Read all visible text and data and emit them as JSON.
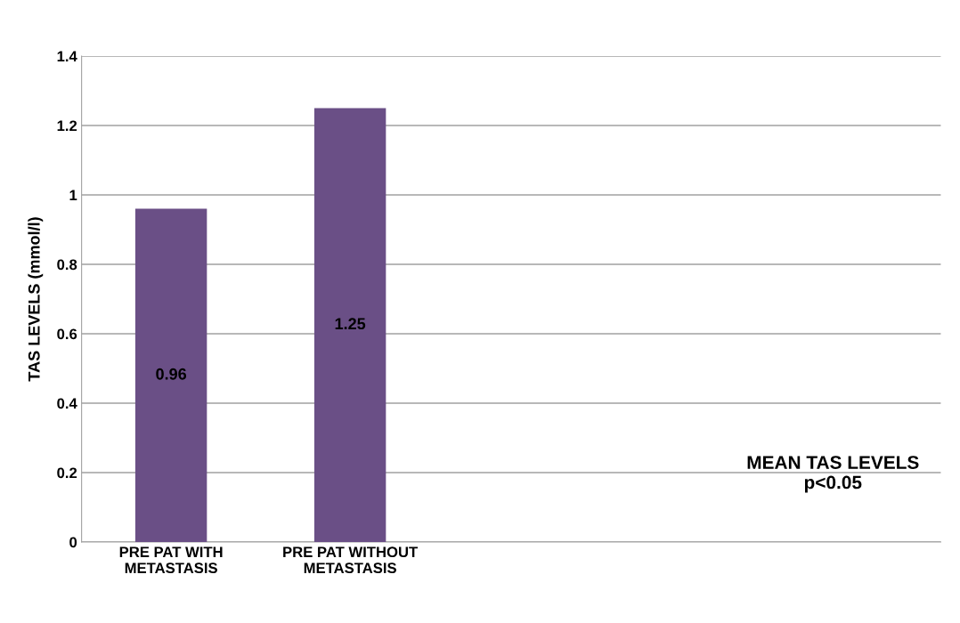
{
  "chart_data": {
    "type": "bar",
    "categories": [
      "PRE PAT WITH\nMETASTASIS",
      "PRE PAT WITHOUT\nMETASTASIS"
    ],
    "values": [
      0.96,
      1.25
    ],
    "color": "#6a4f86",
    "ylabel": "TAS LEVELS (mmol/l)",
    "ylim": [
      0,
      1.4
    ],
    "yticks": [
      0,
      0.2,
      0.4,
      0.6,
      0.8,
      1,
      1.2,
      1.4
    ],
    "grid": "y",
    "data_labels": true,
    "annotations": [
      "MEAN TAS LEVELS\np<0.05"
    ]
  }
}
